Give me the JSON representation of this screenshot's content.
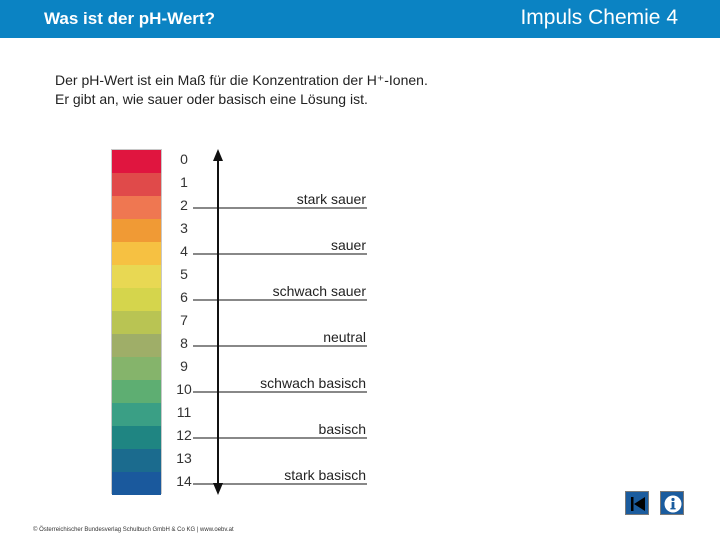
{
  "header": {
    "title": "Was ist der pH-Wert?",
    "brand": "Impuls Chemie 4",
    "background_color": "#0b83c3"
  },
  "intro": {
    "line1": "Der pH-Wert ist ein Maß für die Konzentration der H⁺-Ionen.",
    "line2": "Er gibt an, wie sauer oder basisch eine Lösung ist."
  },
  "scale": {
    "values": [
      "0",
      "1",
      "2",
      "3",
      "4",
      "5",
      "6",
      "7",
      "8",
      "9",
      "10",
      "11",
      "12",
      "13",
      "14"
    ],
    "colors": [
      "#e0153f",
      "#e04a4a",
      "#ef7751",
      "#f09a35",
      "#f6c142",
      "#e8d853",
      "#d5d54c",
      "#b9c453",
      "#9fae68",
      "#85b46b",
      "#5eae72",
      "#3a9f85",
      "#1f8582",
      "#1b6b8e",
      "#1a599d"
    ]
  },
  "categories": [
    {
      "label": "stark sauer",
      "ph": 1
    },
    {
      "label": "sauer",
      "ph": 3
    },
    {
      "label": "schwach sauer",
      "ph": 5
    },
    {
      "label": "neutral",
      "ph": 7
    },
    {
      "label": "schwach basisch",
      "ph": 9
    },
    {
      "label": "basisch",
      "ph": 11
    },
    {
      "label": "stark basisch",
      "ph": 13
    }
  ],
  "footer": {
    "copyright": "© Österreichischer Bundesverlag Schulbuch GmbH & Co KG | www.oebv.at"
  },
  "nav": {
    "back_icon": "back-arrow-icon",
    "info_icon": "info-icon"
  }
}
